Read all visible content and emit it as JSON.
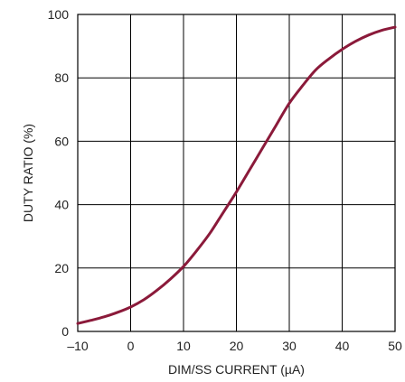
{
  "chart_data": {
    "type": "line",
    "title": "",
    "xlabel": "DIM/SS CURRENT (µA)",
    "ylabel": "DUTY RATIO (%)",
    "xlim": [
      -10,
      50
    ],
    "ylim": [
      0,
      100
    ],
    "grid": true,
    "x_ticks": [
      -10,
      0,
      10,
      20,
      30,
      40,
      50
    ],
    "x_tick_labels": [
      "–10",
      "0",
      "10",
      "20",
      "30",
      "40",
      "50"
    ],
    "y_ticks": [
      0,
      20,
      40,
      60,
      80,
      100
    ],
    "y_tick_labels": [
      "0",
      "20",
      "40",
      "60",
      "80",
      "100"
    ],
    "series": [
      {
        "color": "#8b1a3a",
        "x": [
          -10,
          -7.5,
          -5,
          -2.5,
          0,
          2.5,
          5,
          7.5,
          10,
          12.5,
          15,
          17.5,
          20,
          22.5,
          25,
          27.5,
          30,
          32.5,
          35,
          37.5,
          40,
          42.5,
          45,
          47.5,
          50
        ],
        "y": [
          2.5,
          3.5,
          4.6,
          6.0,
          7.7,
          10.0,
          13.0,
          16.5,
          20.5,
          25.5,
          31.0,
          37.5,
          44.0,
          51.0,
          58.0,
          65.0,
          72.0,
          77.5,
          82.5,
          86.0,
          89.0,
          91.5,
          93.5,
          95.0,
          96.0
        ]
      }
    ]
  }
}
